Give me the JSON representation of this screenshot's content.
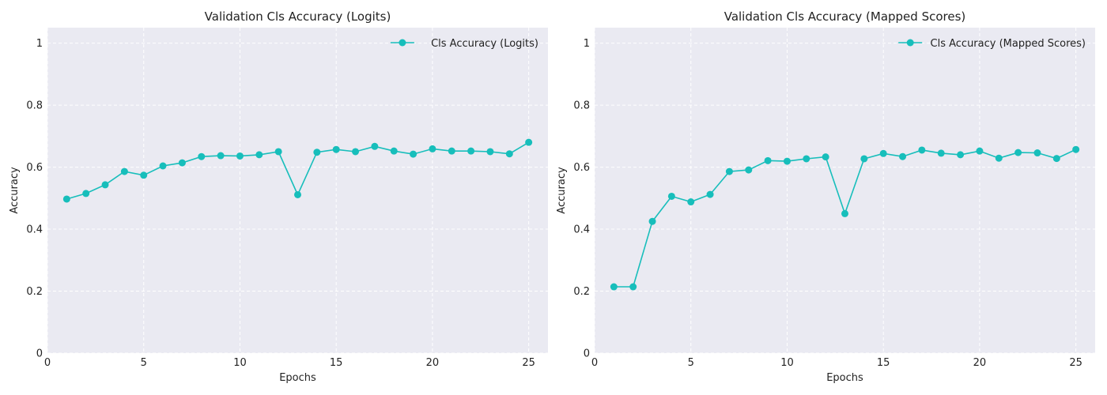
{
  "chart_data": [
    {
      "type": "line",
      "title": "Validation Cls Accuracy (Logits)",
      "xlabel": "Epochs",
      "ylabel": "Accuracy",
      "xlim": [
        0,
        26
      ],
      "ylim": [
        0,
        1.05
      ],
      "xticks": [
        0,
        5,
        10,
        15,
        20,
        25
      ],
      "yticks": [
        0.0,
        0.2,
        0.4,
        0.6,
        0.8,
        1.0
      ],
      "grid": true,
      "legend_position": "top-right",
      "series": [
        {
          "name": "Cls Accuracy (Logits)",
          "color": "#17bebb",
          "marker": "circle",
          "x": [
            1,
            2,
            3,
            4,
            5,
            6,
            7,
            8,
            9,
            10,
            11,
            12,
            13,
            14,
            15,
            16,
            17,
            18,
            19,
            20,
            21,
            22,
            23,
            24,
            25
          ],
          "y": [
            0.497,
            0.515,
            0.543,
            0.586,
            0.574,
            0.604,
            0.614,
            0.634,
            0.637,
            0.636,
            0.64,
            0.65,
            0.511,
            0.648,
            0.657,
            0.65,
            0.667,
            0.652,
            0.642,
            0.659,
            0.652,
            0.652,
            0.65,
            0.643,
            0.68
          ]
        }
      ]
    },
    {
      "type": "line",
      "title": "Validation Cls Accuracy (Mapped Scores)",
      "xlabel": "Epochs",
      "ylabel": "Accuracy",
      "xlim": [
        0,
        26
      ],
      "ylim": [
        0,
        1.05
      ],
      "xticks": [
        0,
        5,
        10,
        15,
        20,
        25
      ],
      "yticks": [
        0.0,
        0.2,
        0.4,
        0.6,
        0.8,
        1.0
      ],
      "grid": true,
      "legend_position": "top-right",
      "series": [
        {
          "name": "Cls Accuracy (Mapped Scores)",
          "color": "#17bebb",
          "marker": "circle",
          "x": [
            1,
            2,
            3,
            4,
            5,
            6,
            7,
            8,
            9,
            10,
            11,
            12,
            13,
            14,
            15,
            16,
            17,
            18,
            19,
            20,
            21,
            22,
            23,
            24,
            25
          ],
          "y": [
            0.214,
            0.214,
            0.425,
            0.506,
            0.488,
            0.512,
            0.586,
            0.591,
            0.621,
            0.619,
            0.627,
            0.633,
            0.45,
            0.627,
            0.644,
            0.634,
            0.655,
            0.645,
            0.64,
            0.652,
            0.629,
            0.647,
            0.646,
            0.628,
            0.657
          ]
        }
      ]
    }
  ]
}
